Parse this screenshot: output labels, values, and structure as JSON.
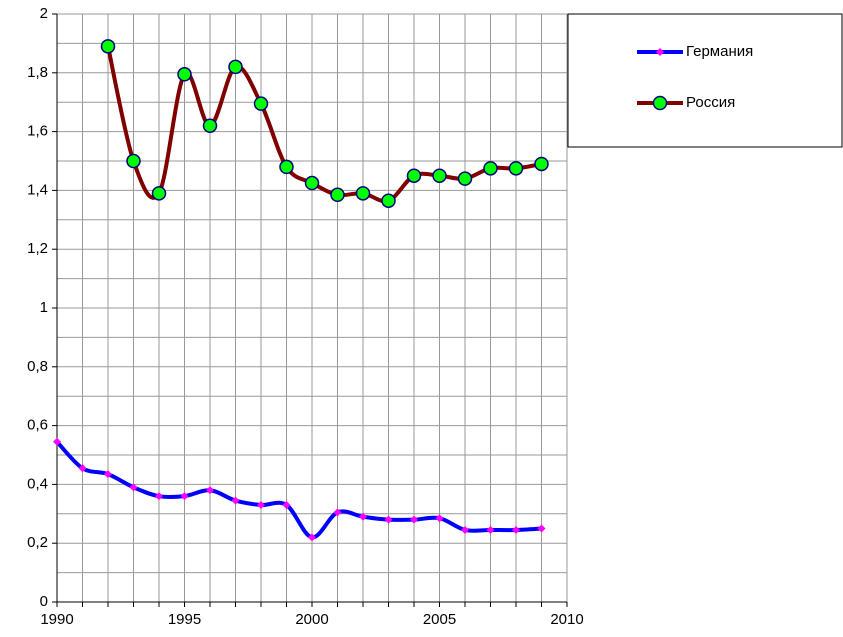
{
  "chart_data": {
    "type": "line",
    "x": [
      1990,
      1991,
      1992,
      1993,
      1994,
      1995,
      1996,
      1997,
      1998,
      1999,
      2000,
      2001,
      2002,
      2003,
      2004,
      2005,
      2006,
      2007,
      2008,
      2009
    ],
    "series": [
      {
        "name": "Германия",
        "color": "#0000ff",
        "marker_color": "#ff00ff",
        "marker": "diamond",
        "values": [
          0.545,
          0.455,
          0.435,
          0.39,
          0.36,
          0.36,
          0.38,
          0.345,
          0.33,
          0.33,
          0.22,
          0.305,
          0.29,
          0.28,
          0.28,
          0.285,
          0.245,
          0.245,
          0.245,
          0.25
        ]
      },
      {
        "name": "Россия",
        "color": "#800000",
        "marker_color": "#00ff00",
        "marker": "circle",
        "values": [
          null,
          null,
          1.89,
          1.5,
          1.39,
          1.795,
          1.62,
          1.82,
          1.695,
          1.48,
          1.425,
          1.385,
          1.39,
          1.365,
          1.45,
          1.45,
          1.44,
          1.475,
          1.475,
          1.49
        ]
      }
    ],
    "xlim": [
      1990,
      2010
    ],
    "xticks": [
      1990,
      1995,
      2000,
      2005,
      2010
    ],
    "xgrid": [
      1991,
      1992,
      1993,
      1994,
      1996,
      1997,
      1998,
      1999,
      2001,
      2002,
      2003,
      2004,
      2006,
      2007,
      2008,
      2009
    ],
    "ylim": [
      0,
      2
    ],
    "yticks": [
      0,
      {
        "value": 0.2,
        "label": "0,2"
      },
      {
        "value": 0.4,
        "label": "0,4"
      },
      {
        "value": 0.6,
        "label": "0,6"
      },
      {
        "value": 0.8,
        "label": "0,8"
      },
      1,
      {
        "value": 1.2,
        "label": "1,2"
      },
      {
        "value": 1.4,
        "label": "1,4"
      },
      {
        "value": 1.6,
        "label": "1,6"
      },
      {
        "value": 1.8,
        "label": "1,8"
      },
      2
    ],
    "ygrid": [
      0.1,
      0.3,
      0.5,
      0.7,
      0.9,
      1.1,
      1.3,
      1.5,
      1.7,
      1.9
    ],
    "grid": true,
    "legend": "right"
  }
}
